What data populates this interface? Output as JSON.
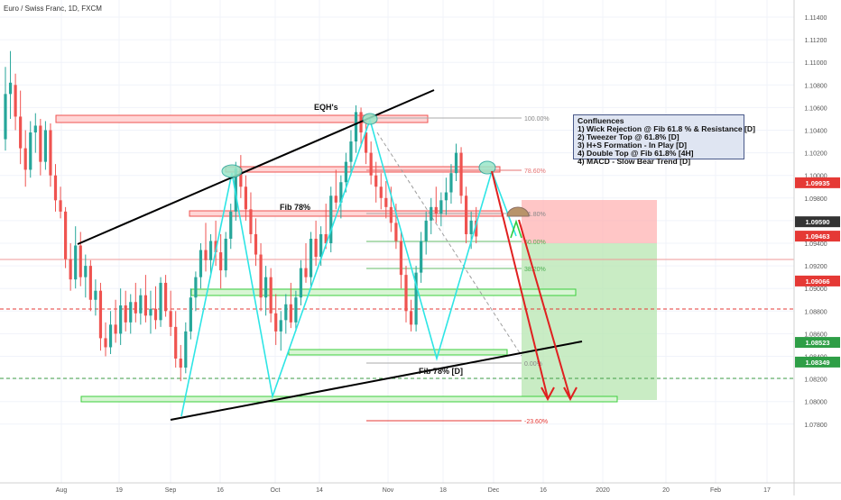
{
  "header": {
    "title": "Euro / Swiss Franc, 1D, FXCM"
  },
  "colors": {
    "up": "#26a69a",
    "down": "#ef5350",
    "trend": "#000000",
    "swing": "#2ee5e5",
    "arrow": "#e02020",
    "stop_zone": "#ffb3b3",
    "target_zone": "#b7e6b0",
    "zone_outline_red": "#ef5350",
    "zone_outline_green": "#3ccf3c",
    "price_marker_red": "#e53935",
    "price_marker_green": "#2e9e46",
    "price_marker_dark": "#333333"
  },
  "chart_data": {
    "type": "candlestick",
    "title": "Euro / Swiss Franc, 1D, FXCM",
    "x_tick_labels": [
      "Aug",
      "19",
      "Sep",
      "16",
      "Oct",
      "14",
      "Nov",
      "18",
      "Dec",
      "16",
      "2020",
      "20",
      "Feb",
      "17"
    ],
    "y_tick_labels": [
      "1.11400",
      "1.11200",
      "1.11000",
      "1.10800",
      "1.10600",
      "1.10400",
      "1.10200",
      "1.10000",
      "1.09800",
      "1.09600",
      "1.09400",
      "1.09200",
      "1.09000",
      "1.08800",
      "1.08600",
      "1.08400",
      "1.08200",
      "1.08000",
      "1.07800"
    ],
    "ylim": [
      1.0768,
      1.1148
    ],
    "grid": true,
    "candles": [
      [
        1.1032,
        1.1096,
        1.1022,
        1.1072
      ],
      [
        1.1072,
        1.111,
        1.105,
        1.1082
      ],
      [
        1.108,
        1.109,
        1.104,
        1.1052
      ],
      [
        1.1052,
        1.1075,
        1.101,
        1.1024
      ],
      [
        1.1024,
        1.104,
        1.099,
        1.1005
      ],
      [
        1.1005,
        1.1048,
        1.0998,
        1.1038
      ],
      [
        1.1038,
        1.1055,
        1.102,
        1.1044
      ],
      [
        1.1044,
        1.105,
        1.1,
        1.1012
      ],
      [
        1.1012,
        1.1048,
        1.1005,
        1.104
      ],
      [
        1.104,
        1.1046,
        1.099,
        1.1
      ],
      [
        1.1,
        1.101,
        1.0968,
        1.0978
      ],
      [
        1.0978,
        1.099,
        1.0962,
        1.0968
      ],
      [
        1.0968,
        1.0972,
        1.0918,
        1.0926
      ],
      [
        1.0926,
        1.094,
        1.0898,
        1.0908
      ],
      [
        1.0908,
        1.0955,
        1.09,
        1.0938
      ],
      [
        1.0938,
        1.095,
        1.0902,
        1.091
      ],
      [
        1.091,
        1.093,
        1.0892,
        1.092
      ],
      [
        1.092,
        1.0925,
        1.088,
        1.089
      ],
      [
        1.089,
        1.0908,
        1.0876,
        1.0898
      ],
      [
        1.0898,
        1.0905,
        1.0845,
        1.0856
      ],
      [
        1.0856,
        1.087,
        1.084,
        1.0848
      ],
      [
        1.0848,
        1.088,
        1.0842,
        1.0868
      ],
      [
        1.0868,
        1.089,
        1.0852,
        1.086
      ],
      [
        1.086,
        1.09,
        1.085,
        1.0885
      ],
      [
        1.0885,
        1.0898,
        1.0862,
        1.087
      ],
      [
        1.087,
        1.0895,
        1.086,
        1.0888
      ],
      [
        1.0888,
        1.0905,
        1.087,
        1.0878
      ],
      [
        1.0878,
        1.09,
        1.0868,
        1.0894
      ],
      [
        1.0894,
        1.0912,
        1.087,
        1.0876
      ],
      [
        1.0876,
        1.0898,
        1.086,
        1.0882
      ],
      [
        1.0882,
        1.0902,
        1.0864,
        1.0872
      ],
      [
        1.0872,
        1.091,
        1.0866,
        1.0905
      ],
      [
        1.0905,
        1.0912,
        1.0875,
        1.088
      ],
      [
        1.088,
        1.0898,
        1.0858,
        1.0866
      ],
      [
        1.0866,
        1.088,
        1.083,
        1.0838
      ],
      [
        1.0838,
        1.085,
        1.0818,
        1.083
      ],
      [
        1.083,
        1.087,
        1.0825,
        1.0862
      ],
      [
        1.0862,
        1.09,
        1.0855,
        1.0892
      ],
      [
        1.0892,
        1.0915,
        1.088,
        1.091
      ],
      [
        1.091,
        1.094,
        1.09,
        1.0934
      ],
      [
        1.0934,
        1.0958,
        1.0915,
        1.0925
      ],
      [
        1.0925,
        1.0948,
        1.091,
        1.0942
      ],
      [
        1.0942,
        1.096,
        1.092,
        1.0932
      ],
      [
        1.0932,
        1.0948,
        1.09,
        1.0916
      ],
      [
        1.0916,
        1.095,
        1.091,
        1.0944
      ],
      [
        1.0944,
        1.0975,
        1.0935,
        1.0968
      ],
      [
        1.0968,
        1.1012,
        1.096,
        1.1006
      ],
      [
        1.1006,
        1.1018,
        1.098,
        1.099
      ],
      [
        1.099,
        1.1,
        1.096,
        1.097
      ],
      [
        1.097,
        1.0985,
        1.094,
        1.0948
      ],
      [
        1.0948,
        1.0962,
        1.092,
        1.093
      ],
      [
        1.093,
        1.094,
        1.088,
        1.0892
      ],
      [
        1.0892,
        1.092,
        1.0876,
        1.091
      ],
      [
        1.091,
        1.0918,
        1.087,
        1.0878
      ],
      [
        1.0878,
        1.0895,
        1.085,
        1.0862
      ],
      [
        1.0862,
        1.088,
        1.0845,
        1.0872
      ],
      [
        1.0872,
        1.0895,
        1.086,
        1.0886
      ],
      [
        1.0886,
        1.0905,
        1.0865,
        1.087
      ],
      [
        1.087,
        1.0898,
        1.0862,
        1.0892
      ],
      [
        1.0892,
        1.0925,
        1.0885,
        1.0918
      ],
      [
        1.0918,
        1.094,
        1.0905,
        1.091
      ],
      [
        1.091,
        1.095,
        1.0902,
        1.0944
      ],
      [
        1.0944,
        1.096,
        1.092,
        1.0928
      ],
      [
        1.0928,
        1.0955,
        1.092,
        1.0948
      ],
      [
        1.0948,
        1.0975,
        1.0935,
        1.094
      ],
      [
        1.094,
        1.099,
        1.0932,
        1.0982
      ],
      [
        1.0982,
        1.1005,
        1.097,
        1.0976
      ],
      [
        1.0976,
        1.1,
        1.0962,
        1.0994
      ],
      [
        1.0994,
        1.102,
        1.0985,
        1.1012
      ],
      [
        1.1012,
        1.104,
        1.1,
        1.103
      ],
      [
        1.103,
        1.1062,
        1.102,
        1.1056
      ],
      [
        1.1056,
        1.106,
        1.1025,
        1.1038
      ],
      [
        1.1038,
        1.105,
        1.101,
        1.102
      ],
      [
        1.102,
        1.103,
        1.0992,
        1.1
      ],
      [
        1.1,
        1.1012,
        1.0976,
        1.099
      ],
      [
        1.099,
        1.1002,
        1.097,
        1.098
      ],
      [
        1.098,
        1.0995,
        1.0962,
        1.0972
      ],
      [
        1.0972,
        1.099,
        1.095,
        1.0958
      ],
      [
        1.0958,
        1.0975,
        1.0935,
        1.0942
      ],
      [
        1.0942,
        1.095,
        1.09,
        1.0912
      ],
      [
        1.0912,
        1.092,
        1.087,
        1.088
      ],
      [
        1.088,
        1.089,
        1.0862,
        1.0868
      ],
      [
        1.0868,
        1.092,
        1.0862,
        1.0914
      ],
      [
        1.0914,
        1.095,
        1.0905,
        1.0942
      ],
      [
        1.0942,
        1.0968,
        1.093,
        1.096
      ],
      [
        1.096,
        1.098,
        1.0948,
        1.0972
      ],
      [
        1.0972,
        1.099,
        1.0958,
        1.0966
      ],
      [
        1.0966,
        1.0985,
        1.0955,
        1.0978
      ],
      [
        1.0978,
        1.0998,
        1.0965,
        1.0985
      ],
      [
        1.0985,
        1.101,
        1.0975,
        1.1002
      ],
      [
        1.1002,
        1.1028,
        1.0995,
        1.102
      ],
      [
        1.102,
        1.1025,
        1.0975,
        1.0982
      ],
      [
        1.0982,
        1.099,
        1.094,
        1.0948
      ],
      [
        1.0948,
        1.0968,
        1.0935,
        1.096
      ],
      [
        1.096,
        1.0972,
        1.094,
        1.0946
      ]
    ],
    "levels": {
      "fib_100": {
        "label": "100.00%",
        "price": 1.106
      },
      "fib_786": {
        "label": "78.60%",
        "price": 1.1018
      },
      "fib_618": {
        "label": "61.80%",
        "price": 1.0983
      },
      "fib_50": {
        "label": "50.00%",
        "price": 1.096
      },
      "fib_382": {
        "label": "38.20%",
        "price": 1.0936
      },
      "fib_0": {
        "label": "0.00%",
        "price": 1.0863
      },
      "fib_ext": {
        "label": "-23.60%",
        "price": 1.0817
      }
    },
    "annotations": {
      "eqh": "EQH's",
      "fib_78": "Fib 78%",
      "fib_78_d": "Fib 78% [D]"
    },
    "price_markers": [
      {
        "label": "1.09935",
        "price": 1.09935,
        "color": "#e53935"
      },
      {
        "label": "1.09590",
        "price": 1.0959,
        "color": "#333333"
      },
      {
        "label": "1.09463",
        "price": 1.09463,
        "color": "#e53935"
      },
      {
        "label": "1.09066",
        "price": 1.09066,
        "color": "#e53935"
      },
      {
        "label": "1.08523",
        "price": 1.08523,
        "color": "#2e9e46"
      },
      {
        "label": "1.08349",
        "price": 1.08349,
        "color": "#2e9e46"
      }
    ]
  },
  "confluences": {
    "title": "Confluences",
    "items": [
      "1) Wick Rejection @ Fib 61.8 % & Resistance [D]",
      "2) Tweezer Top @ 61.8% [D]",
      "3) H+S Formation - In Play [D]",
      "4) Double Top @ Fib 61.8% [4H]",
      "4) MACD - Slow Bear Trend [D]"
    ]
  }
}
